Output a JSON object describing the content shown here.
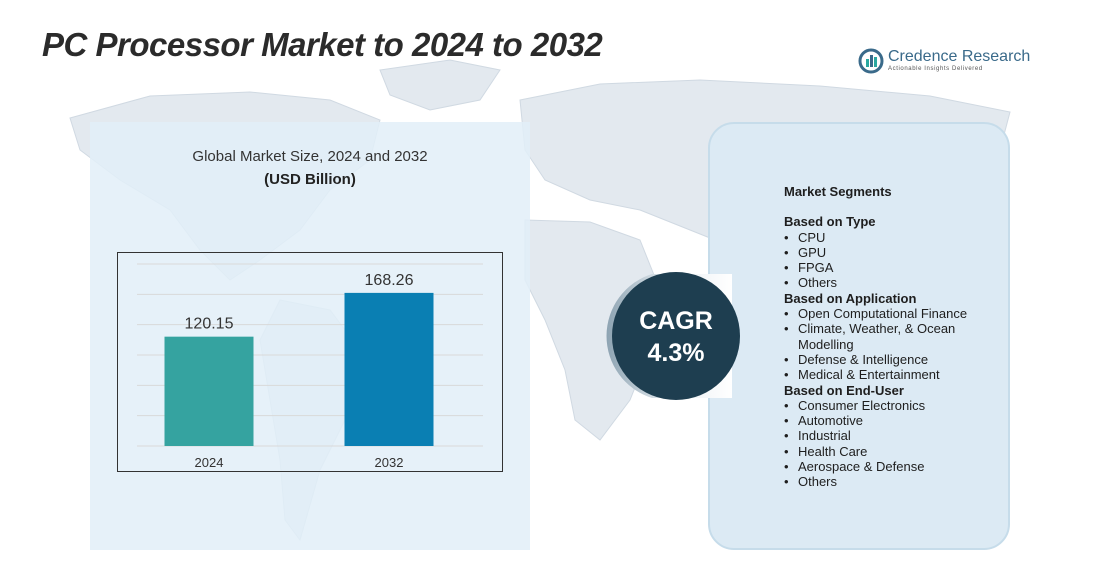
{
  "title": "PC Processor Market to 2024 to 2032",
  "logo": {
    "name": "Credence Research",
    "tagline": "Actionable Insights Delivered"
  },
  "chart_data": {
    "type": "bar",
    "title": "Global Market Size,  2024 and 2032",
    "subtitle": "(USD Billion)",
    "categories": [
      "2024",
      "2032"
    ],
    "values": [
      120.15,
      168.26
    ],
    "data_labels": [
      "120.15",
      "168.26"
    ],
    "colors": [
      "#35a3a0",
      "#0a7fb3"
    ],
    "ylim": [
      0,
      200
    ],
    "grid": true
  },
  "cagr": {
    "label": "CAGR",
    "value": "4.3%"
  },
  "segments": {
    "heading": "Market Segments",
    "groups": [
      {
        "title": "Based on Type",
        "items": [
          "CPU",
          "GPU",
          "FPGA",
          "Others"
        ]
      },
      {
        "title": "Based on Application",
        "items": [
          "Open Computational Finance",
          "Climate, Weather, & Ocean Modelling",
          "Defense & Intelligence",
          "Medical & Entertainment"
        ]
      },
      {
        "title": "Based on End-User",
        "items": [
          "Consumer Electronics",
          "Automotive",
          "Industrial",
          "Health Care",
          "Aerospace & Defense",
          "Others"
        ]
      }
    ]
  },
  "colors": {
    "panel": "#e2eef8",
    "cagr_circle": "#1e3e50",
    "map": "#d5dee6"
  }
}
